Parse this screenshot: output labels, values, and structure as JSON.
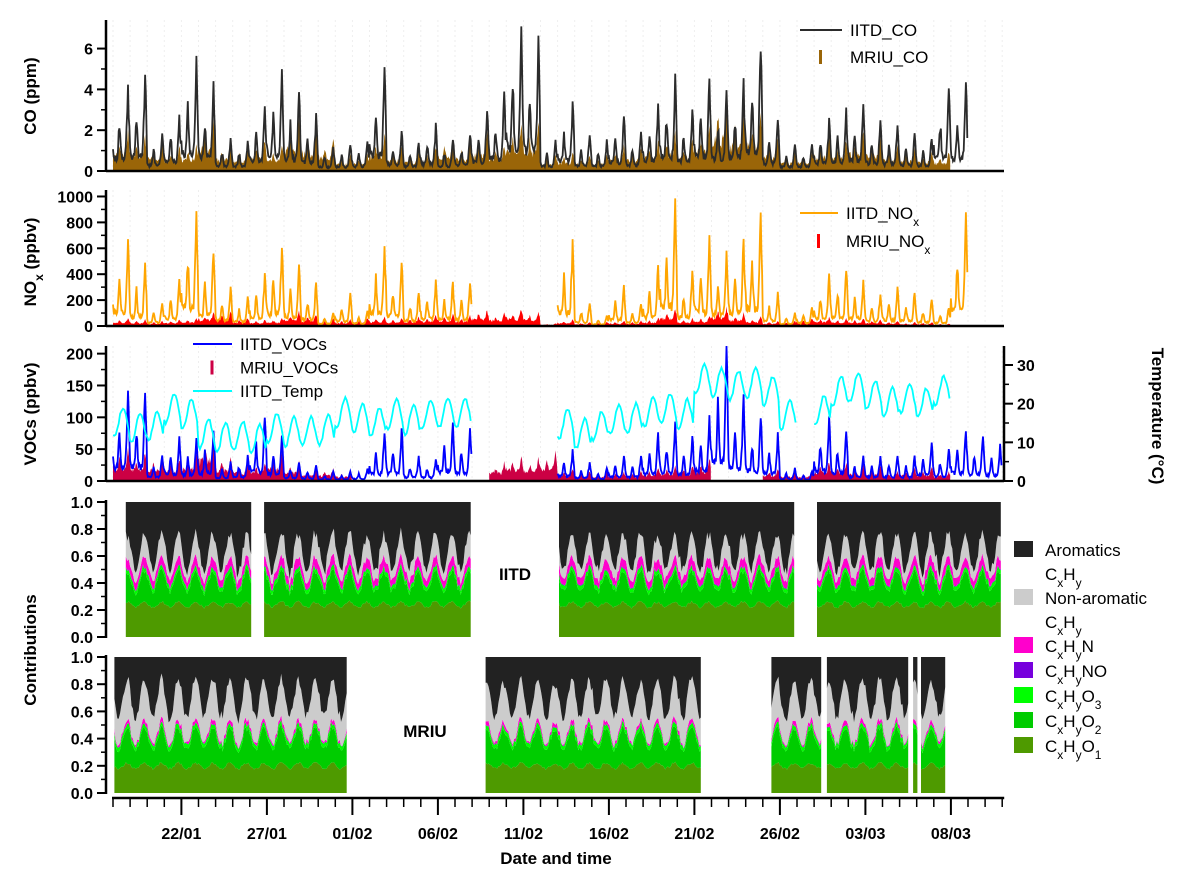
{
  "chart_data": [
    {
      "type": "line",
      "panel": "co",
      "ylabel": "CO (ppm)",
      "ylim": [
        0,
        7.4
      ],
      "yticks": [
        "0",
        "2",
        "4",
        "6"
      ],
      "dates": [
        "18/01",
        "19/01",
        "20/01",
        "21/01",
        "22/01",
        "23/01",
        "24/01",
        "25/01",
        "26/01",
        "27/01",
        "28/01",
        "29/01",
        "30/01",
        "31/01",
        "01/02",
        "02/02",
        "03/02",
        "04/02",
        "05/02",
        "06/02",
        "07/02",
        "08/02",
        "09/02",
        "10/02",
        "11/02",
        "12/02",
        "13/02",
        "14/02",
        "15/02",
        "16/02",
        "17/02",
        "18/02",
        "19/02",
        "20/02",
        "21/02",
        "22/02",
        "23/02",
        "24/02",
        "25/02",
        "26/02",
        "27/02",
        "28/02",
        "01/03",
        "02/03",
        "03/03",
        "04/03",
        "05/03",
        "06/03",
        "07/03",
        "08/03",
        "09/03",
        "10/03"
      ],
      "series": [
        {
          "name": "IITD_CO",
          "style": "line",
          "color": "#2b2b2b",
          "daily_peak": [
            4.2,
            4.7,
            1.8,
            2.8,
            5.6,
            4.3,
            1.6,
            1.5,
            3.2,
            5.0,
            3.9,
            2.8,
            1.2,
            1.3,
            1.5,
            5.0,
            2.0,
            1.4,
            2.3,
            1.5,
            1.8,
            3.0,
            3.8,
            7.3,
            6.4,
            1.5,
            3.3,
            1.8,
            1.5,
            2.7,
            1.9,
            3.2,
            4.6,
            3.1,
            4.6,
            4.0,
            4.4,
            6.0,
            2.5,
            1.3,
            1.3,
            2.6,
            3.0,
            3.3,
            2.5,
            2.2,
            1.8,
            1.6,
            4.2,
            4.2,
            null,
            null
          ]
        },
        {
          "name": "MRIU_CO",
          "style": "fill",
          "color": "#9a6508",
          "daily_peak": [
            1.9,
            1.8,
            1.4,
            1.2,
            1.3,
            2.5,
            1.3,
            1.2,
            1.5,
            1.3,
            2.5,
            2.1,
            1.6,
            0.8,
            0.8,
            1.7,
            1.3,
            1.0,
            1.1,
            1.6,
            1.4,
            1.8,
            1.3,
            2.3,
            2.2,
            0.8,
            0.9,
            0.8,
            0.8,
            1.2,
            1.2,
            1.5,
            1.9,
            1.6,
            2.2,
            3.6,
            2.9,
            2.9,
            1.7,
            0.9,
            0.9,
            1.7,
            1.5,
            1.9,
            1.7,
            1.3,
            1.1,
            1.0,
            0.9,
            null,
            null,
            null
          ]
        }
      ],
      "legend": [
        {
          "parts": [
            {
              "t": "IITD_CO"
            }
          ]
        },
        {
          "parts": [
            {
              "t": "MRIU_CO"
            }
          ]
        }
      ]
    },
    {
      "type": "line",
      "panel": "nox",
      "ylabel_parts": [
        {
          "t": "NO"
        },
        {
          "t": "x",
          "sub": true
        },
        {
          "t": " (ppbv)"
        }
      ],
      "ylim": [
        0,
        1050
      ],
      "yticks": [
        "0",
        "200",
        "400",
        "600",
        "800",
        "1000"
      ],
      "series": [
        {
          "name": "IITD_NOx",
          "style": "line",
          "color": "#ffa500",
          "daily_peak": [
            650,
            480,
            180,
            350,
            900,
            580,
            300,
            220,
            400,
            620,
            470,
            330,
            100,
            250,
            120,
            640,
            490,
            260,
            360,
            340,
            330,
            null,
            null,
            null,
            null,
            null,
            650,
            180,
            80,
            310,
            170,
            460,
            950,
            420,
            700,
            600,
            680,
            880,
            260,
            100,
            150,
            400,
            430,
            370,
            250,
            300,
            250,
            200,
            140,
            850,
            null,
            null
          ]
        },
        {
          "name": "MRIU_NOx",
          "style": "fill",
          "color": "#ff0000",
          "daily_peak": [
            60,
            50,
            40,
            50,
            60,
            110,
            120,
            60,
            50,
            60,
            110,
            90,
            60,
            50,
            60,
            70,
            60,
            70,
            80,
            90,
            80,
            130,
            100,
            130,
            110,
            20,
            50,
            30,
            30,
            40,
            40,
            60,
            130,
            60,
            80,
            150,
            100,
            70,
            40,
            40,
            60,
            70,
            60,
            60,
            50,
            40,
            30,
            30,
            20,
            null,
            null,
            null
          ]
        }
      ],
      "legend": [
        {
          "parts": [
            {
              "t": "IITD_NO"
            },
            {
              "t": "x",
              "sub": true
            }
          ]
        },
        {
          "parts": [
            {
              "t": "MRIU_NO"
            },
            {
              "t": "x",
              "sub": true
            }
          ]
        }
      ]
    },
    {
      "type": "line",
      "panel": "vocs",
      "ylabel": "VOCs (ppbv)",
      "ylim": [
        0,
        212
      ],
      "yticks": [
        "0",
        "50",
        "100",
        "150",
        "200"
      ],
      "y2label": "Temperature (°C)",
      "y2lim": [
        0,
        35
      ],
      "y2ticks": [
        "0",
        "10",
        "20",
        "30"
      ],
      "series": [
        {
          "name": "IITD_VOCs",
          "style": "line",
          "color": "#0000ff",
          "daily_peak": [
            140,
            140,
            40,
            70,
            65,
            80,
            30,
            40,
            100,
            70,
            30,
            25,
            15,
            15,
            20,
            75,
            80,
            40,
            35,
            90,
            80,
            null,
            null,
            null,
            null,
            null,
            50,
            30,
            20,
            40,
            40,
            75,
            90,
            70,
            100,
            213,
            140,
            100,
            75,
            20,
            15,
            100,
            80,
            40,
            40,
            40,
            40,
            60,
            50,
            80,
            70,
            60
          ]
        },
        {
          "name": "MRIU_VOCs",
          "style": "fill",
          "color": "#cc0044",
          "daily_peak": [
            50,
            45,
            40,
            35,
            45,
            75,
            40,
            30,
            30,
            45,
            30,
            20,
            20,
            15,
            null,
            null,
            null,
            null,
            null,
            null,
            null,
            null,
            30,
            40,
            35,
            45,
            20,
            15,
            15,
            15,
            15,
            20,
            25,
            25,
            35,
            null,
            null,
            null,
            20,
            15,
            15,
            30,
            30,
            25,
            25,
            15,
            20,
            20,
            15,
            null,
            null,
            null
          ]
        },
        {
          "name": "IITD_Temp",
          "style": "line",
          "axis": "right",
          "color": "#00ffff",
          "daily_max": [
            19,
            17.5,
            18,
            22.5,
            21,
            16,
            15,
            15.5,
            14.5,
            17.5,
            16.5,
            16.5,
            17,
            21.5,
            20,
            19,
            21,
            19.5,
            21,
            21.5,
            21.5,
            null,
            null,
            null,
            null,
            null,
            18.5,
            16,
            18,
            19.5,
            20,
            21.5,
            22.5,
            21,
            30,
            29,
            28.5,
            29,
            27,
            21,
            null,
            22,
            27,
            28,
            26,
            24,
            25,
            24,
            27,
            null,
            null,
            null
          ]
        }
      ],
      "legend": [
        {
          "parts": [
            {
              "t": "IITD_VOCs"
            }
          ]
        },
        {
          "parts": [
            {
              "t": "MRIU_VOCs"
            }
          ]
        },
        {
          "parts": [
            {
              "t": "IITD_Temp"
            }
          ]
        }
      ]
    },
    {
      "type": "area",
      "panel": "contributions",
      "ylabel": "Contributions",
      "ylim": [
        0,
        1
      ],
      "yticks": [
        "0.0",
        "0.2",
        "0.4",
        "0.6",
        "0.8",
        "1.0"
      ],
      "stations": [
        {
          "name": "IITD",
          "segments": [
            [
              "18/01 18:00",
              "26/01 02:00"
            ],
            [
              "26/01 20:00",
              "07/02 22:00"
            ],
            [
              "13/02 02:00",
              "26/02 21:00"
            ],
            [
              "28/02 04:00",
              "10/03 22:00"
            ]
          ],
          "mean_fractions": {
            "CxHyO1": 0.24,
            "CxHyO2": 0.17,
            "CxHyO3": 0.03,
            "CxHyNO": 0.005,
            "CxHyN": 0.06,
            "Non-aromatic CxHy": 0.12
          }
        },
        {
          "name": "MRIU",
          "segments": [
            [
              "18/01 02:00",
              "31/01 17:00"
            ],
            [
              "08/02 19:00",
              "21/02 10:00"
            ],
            [
              "25/02 12:00",
              "28/02 10:00"
            ],
            [
              "28/02 18:00",
              "05/03 12:00"
            ],
            [
              "05/03 19:00",
              "06/03 02:00"
            ],
            [
              "06/03 06:00",
              "07/03 16:00"
            ]
          ],
          "mean_fractions": {
            "CxHyO1": 0.2,
            "CxHyO2": 0.2,
            "CxHyO3": 0.03,
            "CxHyNO": 0.003,
            "CxHyN": 0.02,
            "Non-aromatic CxHy": 0.24
          }
        }
      ],
      "classes": [
        {
          "key": "Aromatics CxHy",
          "color": "#222222",
          "parts": [
            [
              {
                "t": "Aromatics"
              }
            ],
            [
              {
                "t": "C"
              },
              {
                "t": "x",
                "sub": true
              },
              {
                "t": "H"
              },
              {
                "t": "y",
                "sub": true
              }
            ]
          ]
        },
        {
          "key": "Non-aromatic CxHy",
          "color": "#cccccc",
          "parts": [
            [
              {
                "t": "Non-aromatic"
              }
            ],
            [
              {
                "t": "C"
              },
              {
                "t": "x",
                "sub": true
              },
              {
                "t": "H"
              },
              {
                "t": "y",
                "sub": true
              }
            ]
          ]
        },
        {
          "key": "CxHyN",
          "color": "#ff00cc",
          "parts": [
            [
              {
                "t": "C"
              },
              {
                "t": "x",
                "sub": true
              },
              {
                "t": "H"
              },
              {
                "t": "y",
                "sub": true
              },
              {
                "t": "N"
              }
            ]
          ]
        },
        {
          "key": "CxHyNO",
          "color": "#7700dd",
          "parts": [
            [
              {
                "t": "C"
              },
              {
                "t": "x",
                "sub": true
              },
              {
                "t": "H"
              },
              {
                "t": "y",
                "sub": true
              },
              {
                "t": "NO"
              }
            ]
          ]
        },
        {
          "key": "CxHyO3",
          "color": "#00ff00",
          "parts": [
            [
              {
                "t": "C"
              },
              {
                "t": "x",
                "sub": true
              },
              {
                "t": "H"
              },
              {
                "t": "y",
                "sub": true
              },
              {
                "t": "O"
              },
              {
                "t": "3",
                "sub": true
              }
            ]
          ]
        },
        {
          "key": "CxHyO2",
          "color": "#00cc00",
          "parts": [
            [
              {
                "t": "C"
              },
              {
                "t": "x",
                "sub": true
              },
              {
                "t": "H"
              },
              {
                "t": "y",
                "sub": true
              },
              {
                "t": "O"
              },
              {
                "t": "2",
                "sub": true
              }
            ]
          ]
        },
        {
          "key": "CxHyO1",
          "color": "#4e9a00",
          "parts": [
            [
              {
                "t": "C"
              },
              {
                "t": "x",
                "sub": true
              },
              {
                "t": "H"
              },
              {
                "t": "y",
                "sub": true
              },
              {
                "t": "O"
              },
              {
                "t": "1",
                "sub": true
              }
            ]
          ]
        }
      ]
    }
  ],
  "xaxis": {
    "label": "Date and time",
    "range": [
      "18/01",
      "11/03"
    ],
    "major_ticks": [
      "22/01",
      "27/01",
      "01/02",
      "06/02",
      "11/02",
      "16/02",
      "21/02",
      "26/02",
      "03/03",
      "08/03"
    ]
  }
}
